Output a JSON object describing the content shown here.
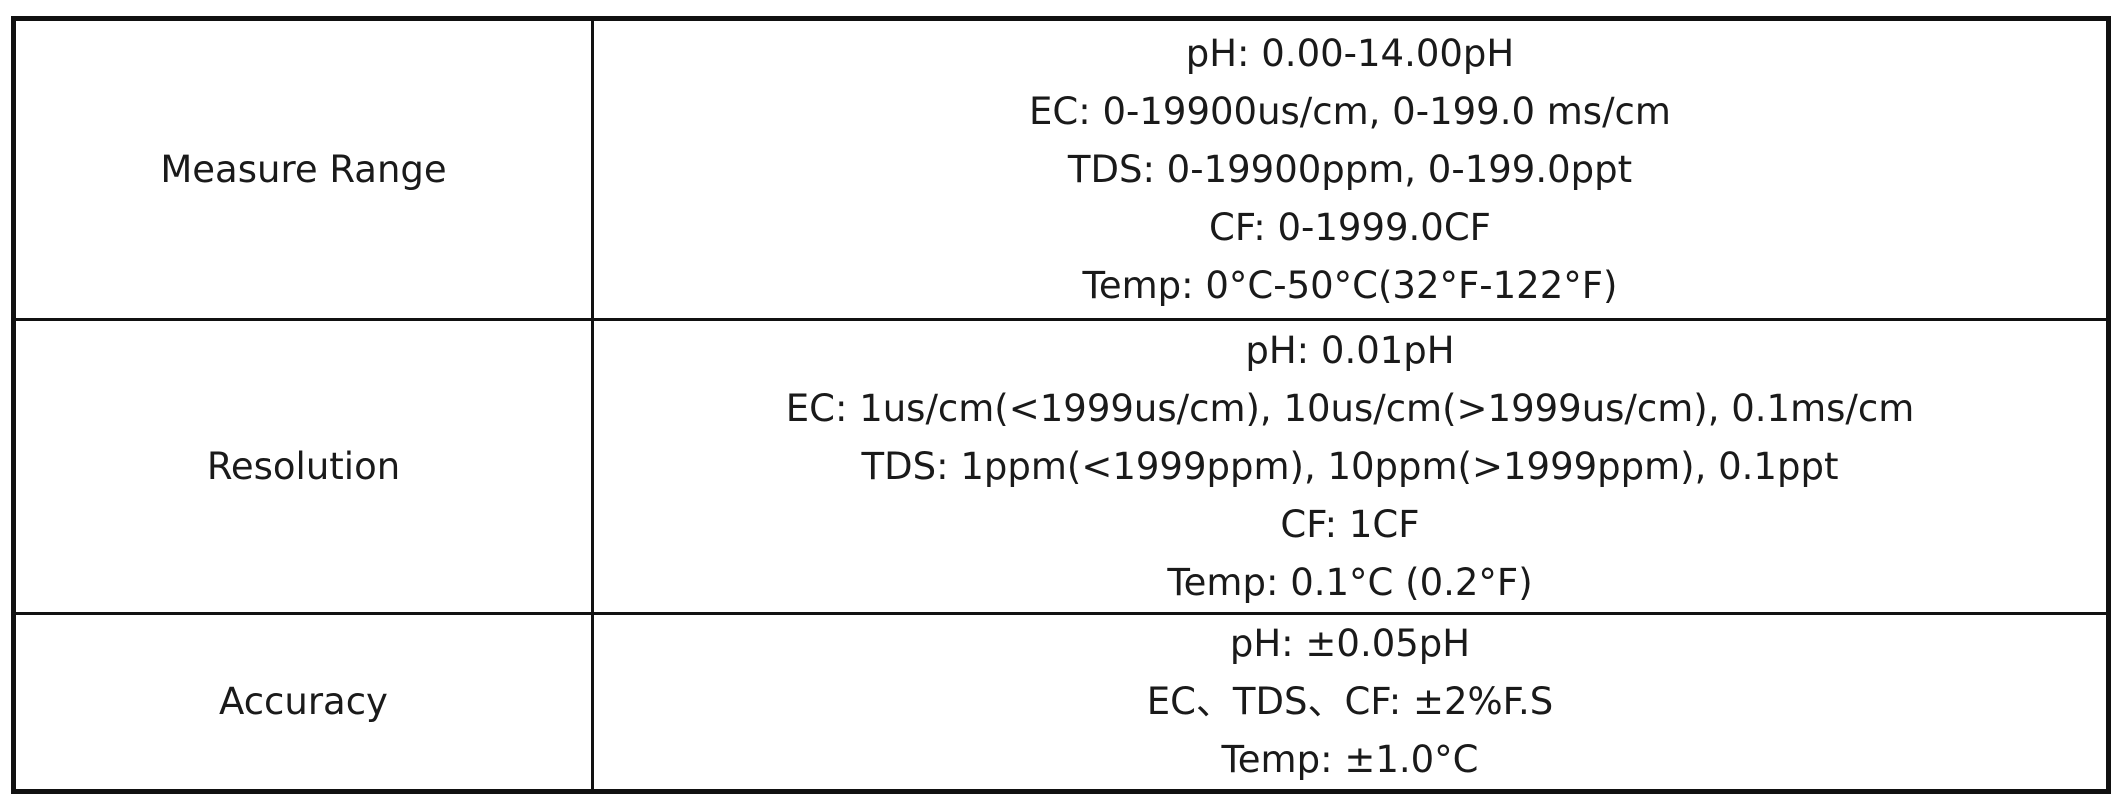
{
  "table": {
    "rows": [
      {
        "label": "Measure Range",
        "lines": [
          "pH: 0.00-14.00pH",
          "EC: 0-19900us/cm, 0-199.0 ms/cm",
          "TDS: 0-19900ppm, 0-199.0ppt",
          "CF: 0-1999.0CF",
          "Temp: 0°C-50°C(32°F-122°F)"
        ]
      },
      {
        "label": "Resolution",
        "lines": [
          "pH: 0.01pH",
          "EC: 1us/cm(<1999us/cm), 10us/cm(>1999us/cm), 0.1ms/cm",
          "TDS: 1ppm(<1999ppm), 10ppm(>1999ppm), 0.1ppt",
          "CF: 1CF",
          "Temp: 0.1°C (0.2°F)"
        ]
      },
      {
        "label": "Accuracy",
        "lines": [
          "pH: ±0.05pH",
          "EC、TDS、CF: ±2%F.S",
          "Temp: ±1.0°C"
        ]
      }
    ]
  }
}
